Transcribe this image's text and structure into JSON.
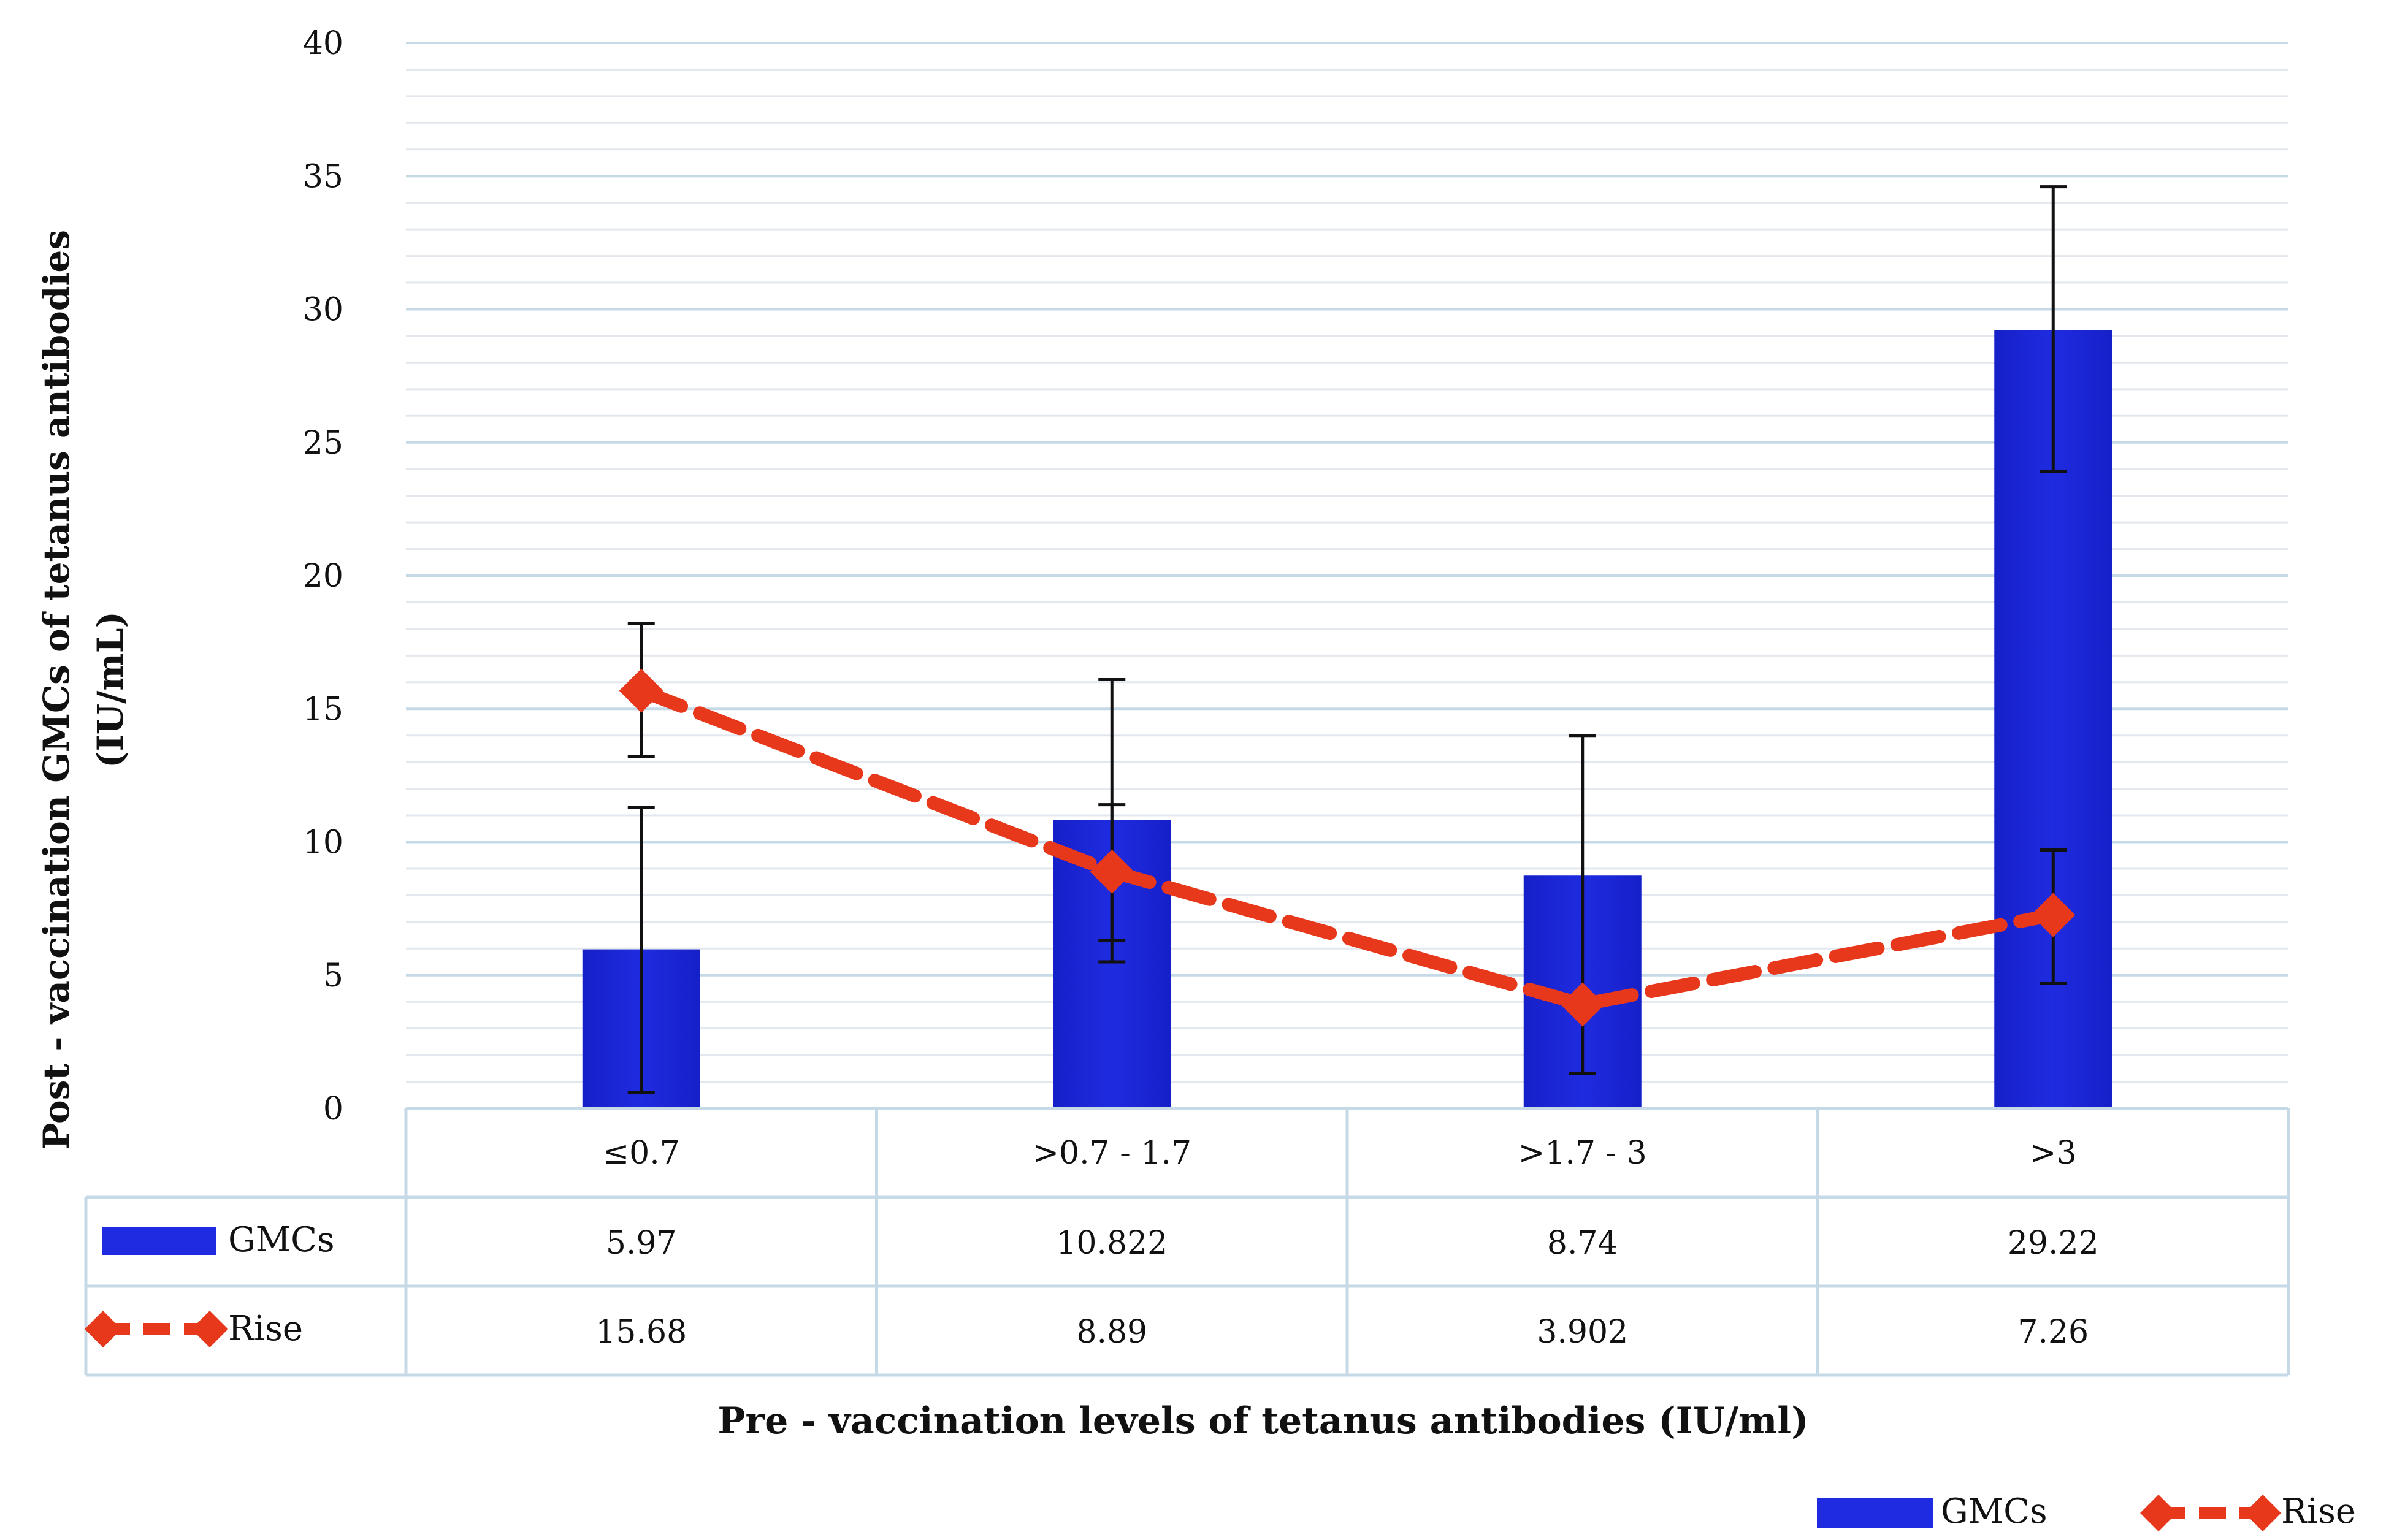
{
  "chart_data": {
    "type": "bar",
    "categories": [
      "≤0.7",
      ">0.7 - 1.7",
      ">1.7 - 3",
      ">3"
    ],
    "ylim": [
      0,
      40
    ],
    "yticks": [
      0,
      5,
      10,
      15,
      20,
      25,
      30,
      35,
      40
    ],
    "ylabel_line1": "Post - vaccination GMCs of tetanus antibodies",
    "ylabel_line2": "(IU/mL)",
    "xlabel": "Pre - vaccination levels of tetanus antibodies (IU/ml)",
    "grid": true,
    "legend_position": "bottom-right",
    "series": [
      {
        "name": "GMCs",
        "kind": "bar",
        "color": "#1f2be0",
        "values": [
          5.97,
          10.822,
          8.74,
          29.22
        ],
        "value_labels": [
          "5.97",
          "10.822",
          "8.74",
          "29.22"
        ],
        "error_low": [
          0.6,
          5.5,
          1.3,
          23.9
        ],
        "error_high": [
          11.3,
          16.1,
          14.0,
          34.6
        ]
      },
      {
        "name": "Rise",
        "kind": "line",
        "style": "dashed",
        "marker": "diamond",
        "color": "#e8381c",
        "values": [
          15.68,
          8.89,
          3.902,
          7.26
        ],
        "value_labels": [
          "15.68",
          "8.89",
          "3.902",
          "7.26"
        ],
        "error_low": [
          13.2,
          6.3,
          6.3,
          4.7
        ],
        "error_high": [
          18.2,
          11.4,
          6.3,
          9.7
        ]
      }
    ]
  }
}
